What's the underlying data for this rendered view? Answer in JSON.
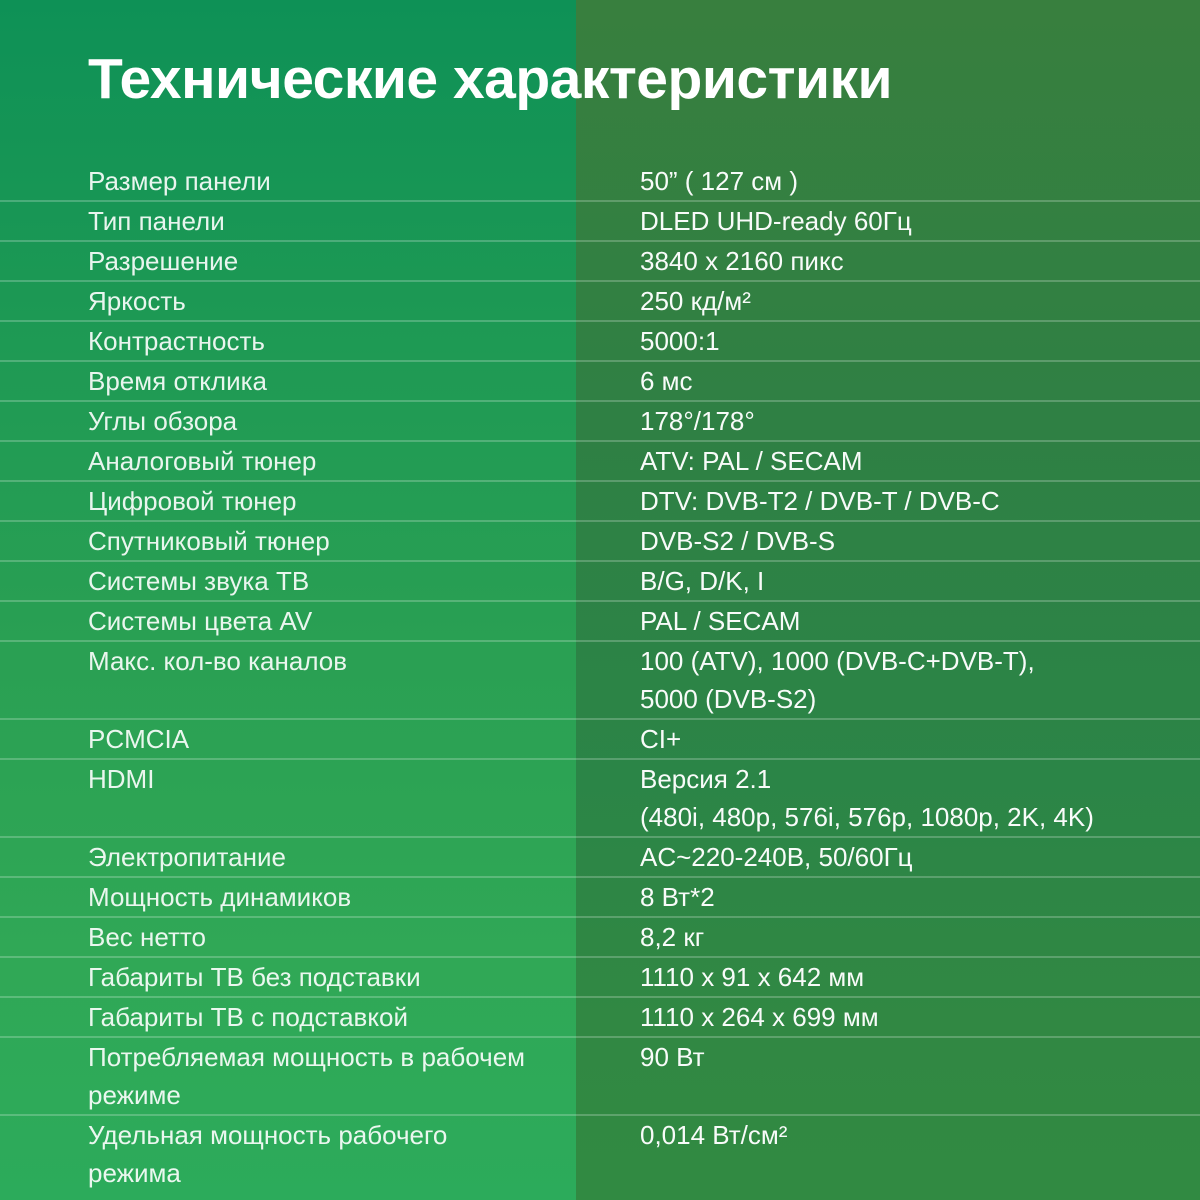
{
  "page": {
    "title": "Технические характеристики"
  },
  "colors": {
    "background_left_top": "#0e9156",
    "background_left_bottom": "#2cab5b",
    "background_right_top": "#387f3e",
    "background_right_bottom": "#318a42",
    "divider": "rgba(255,255,255,0.22)",
    "text": "#ffffff"
  },
  "specs": {
    "rows": [
      {
        "label": "Размер панели",
        "value": "50” ( 127 см )"
      },
      {
        "label": "Тип панели",
        "value": "DLED UHD-ready 60Гц"
      },
      {
        "label": "Разрешение",
        "value": "3840 x 2160 пикс"
      },
      {
        "label": "Яркость",
        "value": "250 кд/м²"
      },
      {
        "label": "Контрастность",
        "value": "5000:1"
      },
      {
        "label": "Время отклика",
        "value": "6 мс"
      },
      {
        "label": "Углы обзора",
        "value": "178°/178°"
      },
      {
        "label": "Аналоговый тюнер",
        "value": "ATV: PAL / SECAM"
      },
      {
        "label": "Цифровой тюнер",
        "value": "DTV: DVB-T2 / DVB-T / DVB-C"
      },
      {
        "label": "Спутниковый тюнер",
        "value": "DVB-S2 / DVB-S"
      },
      {
        "label": "Системы звука ТВ",
        "value": "B/G, D/K, I"
      },
      {
        "label": "Системы цвета AV",
        "value": "PAL / SECAM"
      },
      {
        "label": "Макс. кол-во каналов",
        "value": "100 (ATV), 1000 (DVB-C+DVB-T),\n5000 (DVB-S2)"
      },
      {
        "label": "PCMCIA",
        "value": "CI+"
      },
      {
        "label": "HDMI",
        "value": "Версия 2.1\n(480i, 480p, 576i, 576p, 1080p, 2K, 4K)"
      },
      {
        "label": "Электропитание",
        "value": "AC~220-240В, 50/60Гц"
      },
      {
        "label": "Мощность динамиков",
        "value": "8 Вт*2"
      },
      {
        "label": "Вес нетто",
        "value": "8,2 кг"
      },
      {
        "label": "Габариты ТВ без подставки",
        "value": "1110 x 91 x 642 мм"
      },
      {
        "label": "Габариты ТВ с подставкой",
        "value": "1110 x 264 x 699 мм"
      },
      {
        "label": "Потребляемая мощность в рабочем\nрежиме",
        "value": "90 Вт"
      },
      {
        "label": "Удельная мощность рабочего\nрежима",
        "value": "0,014 Вт/см²"
      }
    ]
  }
}
